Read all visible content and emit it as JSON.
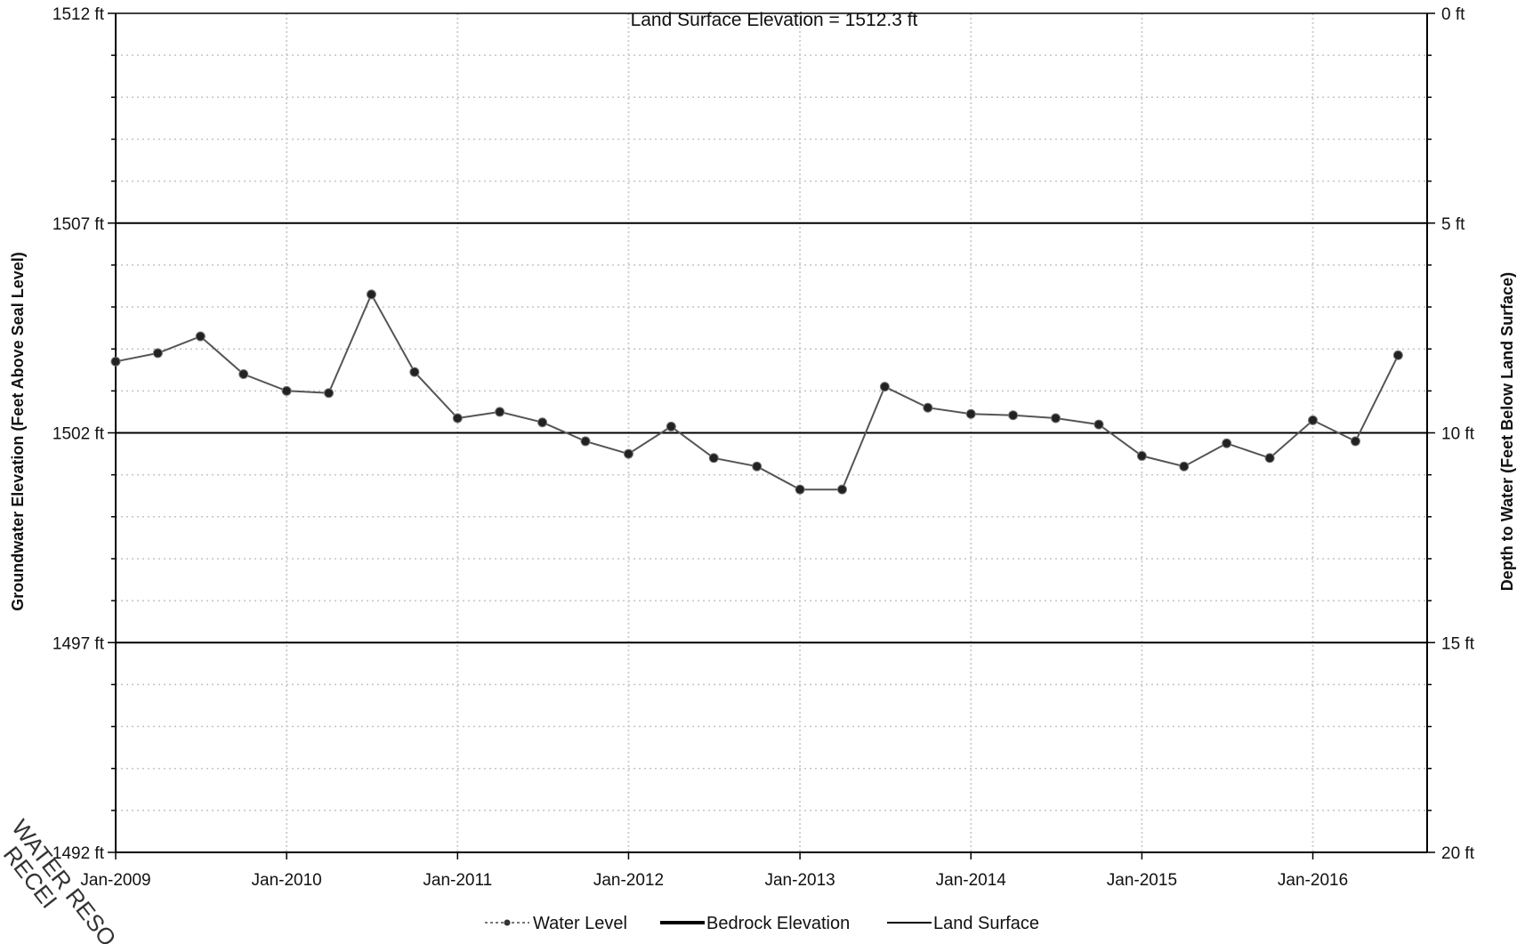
{
  "chart_data": {
    "type": "line",
    "title": "Land Surface Elevation = 1512.3 ft",
    "ylabel": "Groundwater Elevation (Feet Above Seal Level)",
    "y2label": "Depth to Water (Feet Below Land Surface)",
    "ylim": [
      1492,
      1512
    ],
    "y2lim": [
      20,
      0
    ],
    "xlim": [
      "2009-01-01",
      "2016-09-01"
    ],
    "land_surface_elevation": 1512.3,
    "grid": true,
    "legend_position": "bottom",
    "x_ticks": [
      {
        "date": "2009-01-01",
        "label": "Jan-2009"
      },
      {
        "date": "2010-01-01",
        "label": "Jan-2010"
      },
      {
        "date": "2011-01-01",
        "label": "Jan-2011"
      },
      {
        "date": "2012-01-01",
        "label": "Jan-2012"
      },
      {
        "date": "2013-01-01",
        "label": "Jan-2013"
      },
      {
        "date": "2014-01-01",
        "label": "Jan-2014"
      },
      {
        "date": "2015-01-01",
        "label": "Jan-2015"
      },
      {
        "date": "2016-01-01",
        "label": "Jan-2016"
      }
    ],
    "y_ticks": [
      {
        "value": 1512,
        "label": "1512 ft"
      },
      {
        "value": 1507,
        "label": "1507 ft"
      },
      {
        "value": 1502,
        "label": "1502 ft"
      },
      {
        "value": 1497,
        "label": "1497 ft"
      },
      {
        "value": 1492,
        "label": "1492 ft"
      }
    ],
    "y2_ticks": [
      {
        "value": 0,
        "label": "0 ft"
      },
      {
        "value": 5,
        "label": "5 ft"
      },
      {
        "value": 10,
        "label": "10 ft"
      },
      {
        "value": 15,
        "label": "15 ft"
      },
      {
        "value": 20,
        "label": "20 ft"
      }
    ],
    "series": [
      {
        "name": "Water Level",
        "color": "#555555",
        "marker": "circle",
        "x": [
          "2009-01-01",
          "2009-04-01",
          "2009-07-01",
          "2009-10-01",
          "2010-01-01",
          "2010-04-01",
          "2010-07-01",
          "2010-10-01",
          "2011-01-01",
          "2011-04-01",
          "2011-07-01",
          "2011-10-01",
          "2012-01-01",
          "2012-04-01",
          "2012-07-01",
          "2012-10-01",
          "2013-01-01",
          "2013-04-01",
          "2013-07-01",
          "2013-10-01",
          "2014-01-01",
          "2014-04-01",
          "2014-07-01",
          "2014-10-01",
          "2015-01-01",
          "2015-04-01",
          "2015-07-01",
          "2015-10-01",
          "2016-01-01",
          "2016-04-01",
          "2016-07-01"
        ],
        "y": [
          1503.7,
          1503.9,
          1504.3,
          1503.4,
          1503.0,
          1502.95,
          1505.3,
          1503.45,
          1502.35,
          1502.5,
          1502.25,
          1501.8,
          1501.5,
          1502.15,
          1501.4,
          1501.2,
          1500.65,
          1500.65,
          1503.1,
          1502.6,
          1502.45,
          1502.42,
          1502.35,
          1502.2,
          1501.45,
          1501.2,
          1501.75,
          1501.4,
          1502.3,
          1501.8,
          1503.85
        ]
      },
      {
        "name": "Bedrock Elevation",
        "color": "#000000",
        "y": []
      },
      {
        "name": "Land Surface",
        "color": "#000000",
        "y": []
      }
    ],
    "legend": [
      "Water Level",
      "Bedrock Elevation",
      "Land Surface"
    ]
  }
}
